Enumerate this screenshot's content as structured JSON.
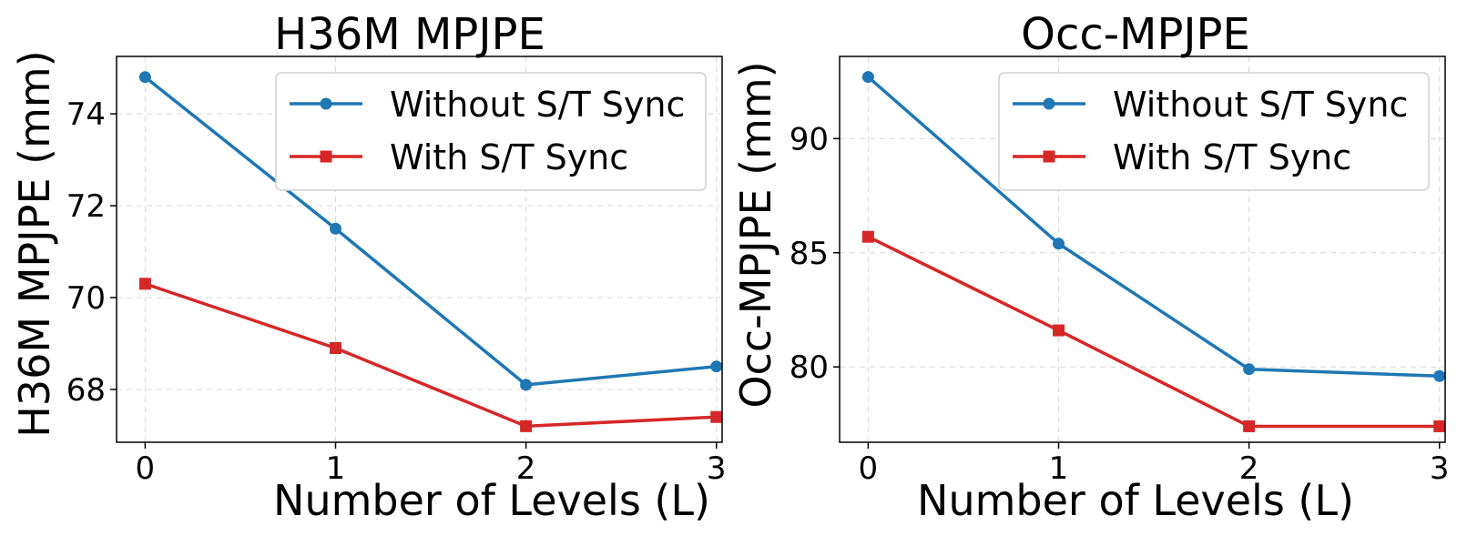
{
  "colors": {
    "without": "#1f77b4",
    "with": "#d62728"
  },
  "chart_data": [
    {
      "type": "line",
      "title": "H36M MPJPE",
      "xlabel": "Number of Levels (L)",
      "ylabel": "H36M MPJPE (mm)",
      "x": [
        0,
        1,
        2,
        3
      ],
      "x_ticks": [
        "0",
        "1",
        "2",
        "3"
      ],
      "y_ticks": [
        "68",
        "70",
        "72",
        "74"
      ],
      "xlim": [
        -0.15,
        3.03
      ],
      "ylim": [
        66.85,
        75.25
      ],
      "grid": true,
      "legend_position": "upper right",
      "legend": [
        "Without S/T Sync",
        "With S/T Sync"
      ],
      "series": [
        {
          "name": "Without S/T Sync",
          "marker": "circle",
          "values": [
            74.8,
            71.5,
            68.1,
            68.5
          ]
        },
        {
          "name": "With S/T Sync",
          "marker": "square",
          "values": [
            70.3,
            68.9,
            67.2,
            67.4
          ]
        }
      ]
    },
    {
      "type": "line",
      "title": "Occ-MPJPE",
      "xlabel": "Number of Levels (L)",
      "ylabel": "Occ-MPJPE (mm)",
      "x": [
        0,
        1,
        2,
        3
      ],
      "x_ticks": [
        "0",
        "1",
        "2",
        "3"
      ],
      "y_ticks": [
        "80",
        "85",
        "90"
      ],
      "xlim": [
        -0.15,
        3.03
      ],
      "ylim": [
        76.7,
        93.6
      ],
      "grid": true,
      "legend_position": "upper right",
      "legend": [
        "Without S/T Sync",
        "With S/T Sync"
      ],
      "series": [
        {
          "name": "Without S/T Sync",
          "marker": "circle",
          "values": [
            92.7,
            85.4,
            79.9,
            79.6
          ]
        },
        {
          "name": "With S/T Sync",
          "marker": "square",
          "values": [
            85.7,
            81.6,
            77.4,
            77.4
          ]
        }
      ]
    }
  ]
}
